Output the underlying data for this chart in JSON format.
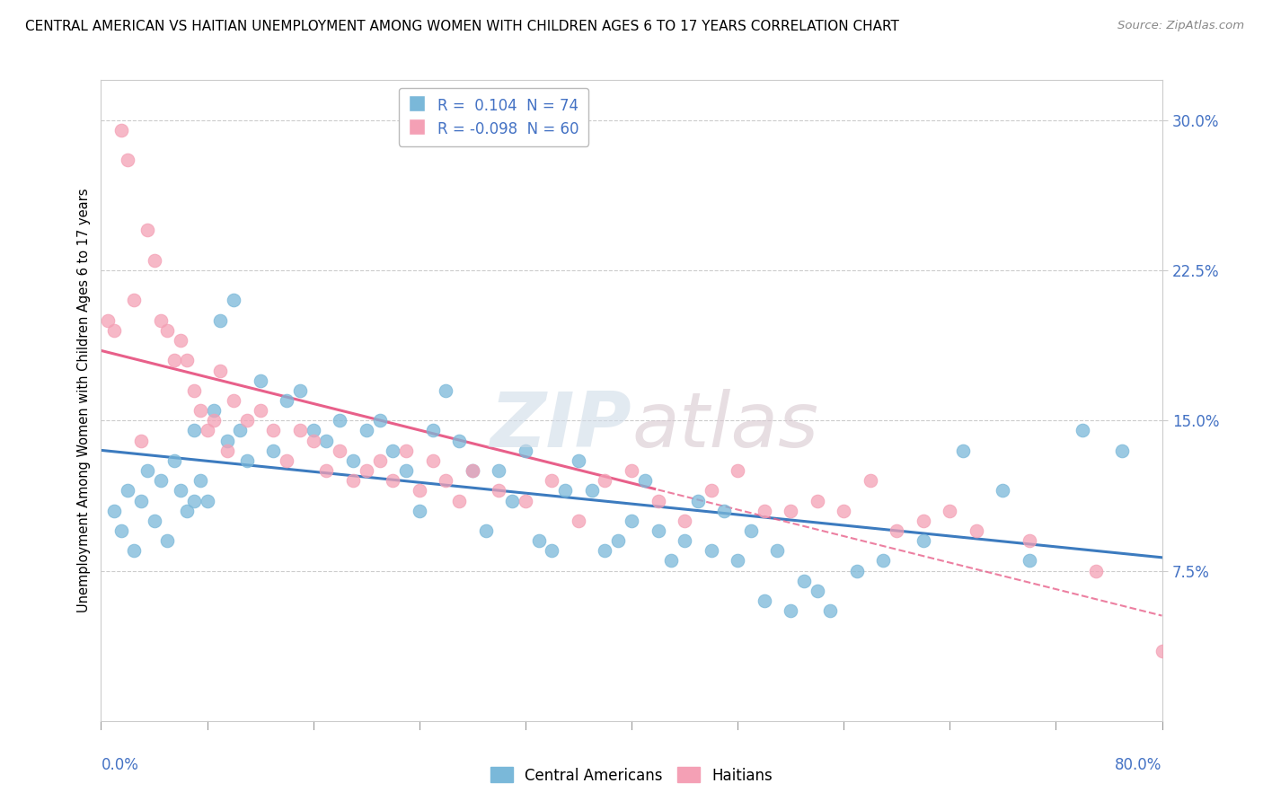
{
  "title": "CENTRAL AMERICAN VS HAITIAN UNEMPLOYMENT AMONG WOMEN WITH CHILDREN AGES 6 TO 17 YEARS CORRELATION CHART",
  "source": "Source: ZipAtlas.com",
  "ylabel": "Unemployment Among Women with Children Ages 6 to 17 years",
  "ytick_values": [
    7.5,
    15.0,
    22.5,
    30.0
  ],
  "xlim": [
    0.0,
    80.0
  ],
  "ylim": [
    0.0,
    32.0
  ],
  "legend_r1": "R =  0.104",
  "legend_n1": "N = 74",
  "legend_r2": "R = -0.098",
  "legend_n2": "N = 60",
  "color_blue": "#7ab8d9",
  "color_pink": "#f4a0b5",
  "color_blue_line": "#3c7bbf",
  "color_pink_line": "#e8608a",
  "watermark_text": "ZIPatlas",
  "ca_x": [
    1.0,
    1.5,
    2.0,
    2.5,
    3.0,
    3.5,
    4.0,
    4.5,
    5.0,
    5.5,
    6.0,
    6.5,
    7.0,
    7.0,
    7.5,
    8.0,
    8.5,
    9.0,
    9.5,
    10.0,
    10.5,
    11.0,
    12.0,
    13.0,
    14.0,
    15.0,
    16.0,
    17.0,
    18.0,
    19.0,
    20.0,
    21.0,
    22.0,
    23.0,
    24.0,
    25.0,
    26.0,
    27.0,
    28.0,
    29.0,
    30.0,
    31.0,
    32.0,
    33.0,
    34.0,
    35.0,
    36.0,
    37.0,
    38.0,
    39.0,
    40.0,
    41.0,
    42.0,
    43.0,
    44.0,
    45.0,
    46.0,
    47.0,
    48.0,
    49.0,
    50.0,
    51.0,
    52.0,
    53.0,
    54.0,
    55.0,
    57.0,
    59.0,
    62.0,
    65.0,
    68.0,
    70.0,
    74.0,
    77.0
  ],
  "ca_y": [
    10.5,
    9.5,
    11.5,
    8.5,
    11.0,
    12.5,
    10.0,
    12.0,
    9.0,
    13.0,
    11.5,
    10.5,
    14.5,
    11.0,
    12.0,
    11.0,
    15.5,
    20.0,
    14.0,
    21.0,
    14.5,
    13.0,
    17.0,
    13.5,
    16.0,
    16.5,
    14.5,
    14.0,
    15.0,
    13.0,
    14.5,
    15.0,
    13.5,
    12.5,
    10.5,
    14.5,
    16.5,
    14.0,
    12.5,
    9.5,
    12.5,
    11.0,
    13.5,
    9.0,
    8.5,
    11.5,
    13.0,
    11.5,
    8.5,
    9.0,
    10.0,
    12.0,
    9.5,
    8.0,
    9.0,
    11.0,
    8.5,
    10.5,
    8.0,
    9.5,
    6.0,
    8.5,
    5.5,
    7.0,
    6.5,
    5.5,
    7.5,
    8.0,
    9.0,
    13.5,
    11.5,
    8.0,
    14.5,
    13.5
  ],
  "ha_x": [
    0.5,
    1.0,
    1.5,
    2.0,
    2.5,
    3.0,
    3.5,
    4.0,
    4.5,
    5.0,
    5.5,
    6.0,
    6.5,
    7.0,
    7.5,
    8.0,
    8.5,
    9.0,
    9.5,
    10.0,
    11.0,
    12.0,
    13.0,
    14.0,
    15.0,
    16.0,
    17.0,
    18.0,
    19.0,
    20.0,
    21.0,
    22.0,
    23.0,
    24.0,
    25.0,
    26.0,
    27.0,
    28.0,
    30.0,
    32.0,
    34.0,
    36.0,
    38.0,
    40.0,
    42.0,
    44.0,
    46.0,
    48.0,
    50.0,
    52.0,
    54.0,
    56.0,
    58.0,
    60.0,
    62.0,
    64.0,
    66.0,
    70.0,
    75.0,
    80.0
  ],
  "ha_y": [
    20.0,
    19.5,
    29.5,
    28.0,
    21.0,
    14.0,
    24.5,
    23.0,
    20.0,
    19.5,
    18.0,
    19.0,
    18.0,
    16.5,
    15.5,
    14.5,
    15.0,
    17.5,
    13.5,
    16.0,
    15.0,
    15.5,
    14.5,
    13.0,
    14.5,
    14.0,
    12.5,
    13.5,
    12.0,
    12.5,
    13.0,
    12.0,
    13.5,
    11.5,
    13.0,
    12.0,
    11.0,
    12.5,
    11.5,
    11.0,
    12.0,
    10.0,
    12.0,
    12.5,
    11.0,
    10.0,
    11.5,
    12.5,
    10.5,
    10.5,
    11.0,
    10.5,
    12.0,
    9.5,
    10.0,
    10.5,
    9.5,
    9.0,
    7.5,
    3.5
  ]
}
